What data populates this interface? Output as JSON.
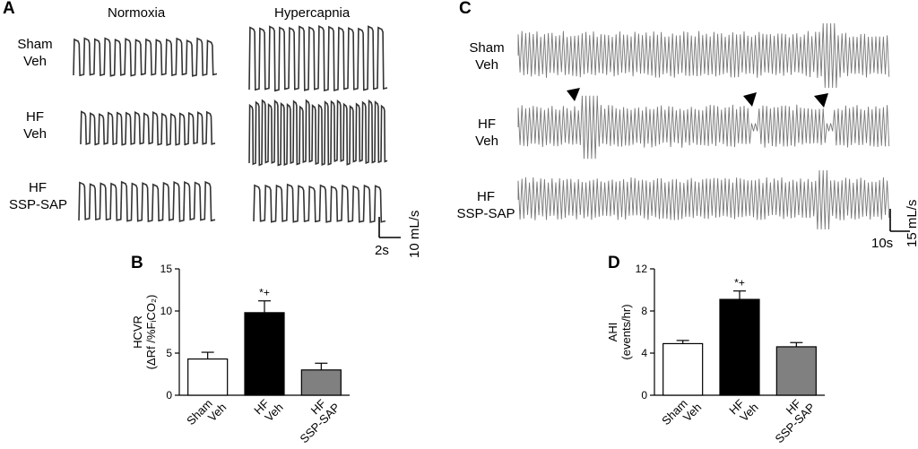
{
  "panels": {
    "A": {
      "letter": "A",
      "conditions": [
        "Normoxia",
        "Hypercapnia"
      ],
      "rows": [
        {
          "line1": "Sham",
          "line2": "Veh"
        },
        {
          "line1": "HF",
          "line2": "Veh"
        },
        {
          "line1": "HF",
          "line2": "SSP-SAP"
        }
      ],
      "scale_time": "2s",
      "scale_flow": "10 mL/s"
    },
    "C": {
      "letter": "C",
      "rows": [
        {
          "line1": "Sham",
          "line2": "Veh"
        },
        {
          "line1": "HF",
          "line2": "Veh"
        },
        {
          "line1": "HF",
          "line2": "SSP-SAP"
        }
      ],
      "scale_time": "10s",
      "scale_flow": "15 mL/s"
    },
    "B": {
      "letter": "B"
    },
    "D": {
      "letter": "D"
    }
  },
  "chart_data": [
    {
      "panel": "B",
      "type": "bar",
      "categories": [
        {
          "line1": "Sham",
          "line2": "Veh"
        },
        {
          "line1": "HF",
          "line2": "Veh"
        },
        {
          "line1": "HF",
          "line2": "SSP-SAP"
        }
      ],
      "values": [
        4.3,
        9.8,
        3.0
      ],
      "errors": [
        0.8,
        1.4,
        0.8
      ],
      "colors": [
        "#ffffff",
        "#000000",
        "#808080"
      ],
      "significance": [
        "",
        "*+",
        ""
      ],
      "ylabel_line1": "HCVR",
      "ylabel_line2": "(ΔRf /%FᵢCO₂)",
      "ylim": [
        0,
        15
      ],
      "yticks": [
        0,
        5,
        10,
        15
      ]
    },
    {
      "panel": "D",
      "type": "bar",
      "categories": [
        {
          "line1": "Sham",
          "line2": "Veh"
        },
        {
          "line1": "HF",
          "line2": "Veh"
        },
        {
          "line1": "HF",
          "line2": "SSP-SAP"
        }
      ],
      "values": [
        4.9,
        9.1,
        4.6
      ],
      "errors": [
        0.3,
        0.8,
        0.4
      ],
      "colors": [
        "#ffffff",
        "#000000",
        "#808080"
      ],
      "significance": [
        "",
        "*+",
        ""
      ],
      "ylabel_line1": "AHI",
      "ylabel_line2": "(events/hr)",
      "ylim": [
        0,
        12
      ],
      "yticks": [
        0,
        4,
        8,
        12
      ]
    }
  ]
}
